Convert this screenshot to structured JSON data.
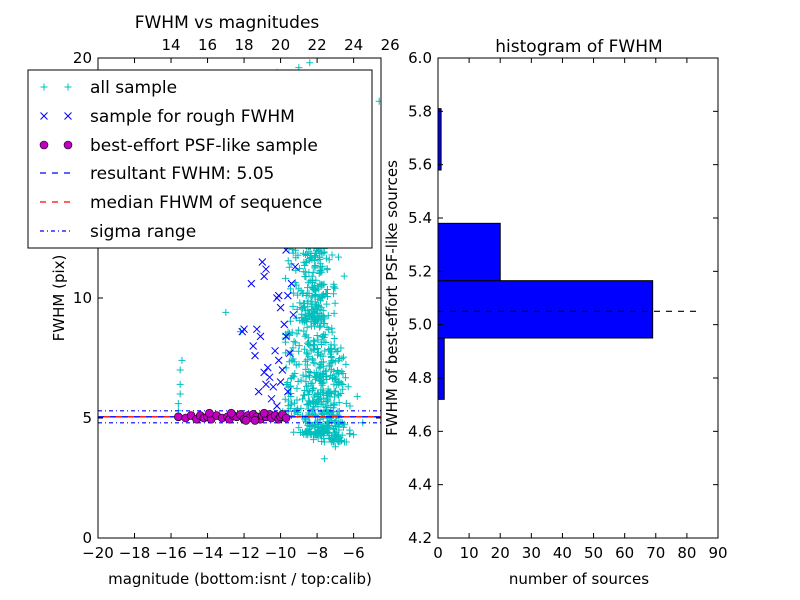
{
  "chart_data": [
    {
      "type": "scatter",
      "title": "FWHM vs magnitudes",
      "xlabel": "magnitude (bottom:isnt / top:calib)",
      "ylabel": "FWHM (pix)",
      "xlim": [
        -20,
        -4.5
      ],
      "ylim": [
        0,
        20
      ],
      "xticks": [
        -20,
        -18,
        -16,
        -14,
        -12,
        -10,
        -8,
        -6
      ],
      "yticks": [
        0,
        5,
        10,
        20
      ],
      "top_axis_ticks": [
        14,
        16,
        18,
        20,
        22,
        24,
        26
      ],
      "top_axis_offset": 30,
      "legend": {
        "position": "top-left",
        "entries": [
          {
            "label": "all sample",
            "marker": "+",
            "color": "#00bfbf"
          },
          {
            "label": "sample for rough FWHM",
            "marker": "x",
            "color": "#0000ff"
          },
          {
            "label": "best-effort PSF-like sample",
            "marker": "o",
            "color": "#bf00bf"
          },
          {
            "label": "resultant FWHM: 5.05",
            "style": "dashed",
            "color": "#0000ff"
          },
          {
            "label": "median FHWM of sequence",
            "style": "dashed",
            "color": "#ff0000"
          },
          {
            "label": "sigma range",
            "style": "dashdot",
            "color": "#0000ff"
          }
        ]
      },
      "lines": {
        "resultant_fwhm": 5.05,
        "median_fwhm": 5.05,
        "sigma_range": [
          4.8,
          5.3
        ]
      },
      "series": [
        {
          "name": "all sample",
          "color": "#00bfbf",
          "marker": "+",
          "points": [
            [
              -15.6,
              5.3
            ],
            [
              -15.6,
              5.6
            ],
            [
              -15.5,
              6.0
            ],
            [
              -15.5,
              6.4
            ],
            [
              -15.5,
              7.0
            ],
            [
              -15.4,
              7.4
            ],
            [
              -13.0,
              9.4
            ],
            [
              -12.2,
              8.6
            ],
            [
              -11.6,
              12.5
            ],
            [
              -10.8,
              13.2
            ],
            [
              -10.5,
              15.0
            ],
            [
              -11.2,
              19.0
            ],
            [
              -11.5,
              18.3
            ],
            [
              -10.2,
              19.4
            ],
            [
              -9.8,
              18.8
            ],
            [
              -9.0,
              19.6
            ],
            [
              -8.4,
              19.8
            ],
            [
              -7.9,
              18.6
            ],
            [
              -9.3,
              17.5
            ],
            [
              -8.6,
              17.0
            ],
            [
              -8.0,
              16.6
            ],
            [
              -4.6,
              18.2
            ],
            [
              -6.6,
              6.2
            ],
            [
              -6.2,
              5.5
            ],
            [
              -5.8,
              5.9
            ],
            [
              -5.5,
              4.8
            ],
            [
              -7.2,
              4.2
            ],
            [
              -7.6,
              3.3
            ],
            [
              -7.0,
              3.8
            ],
            [
              -6.8,
              4.5
            ],
            [
              -8.2,
              4.1
            ],
            [
              -8.8,
              4.4
            ],
            [
              -9.4,
              5.1
            ],
            [
              -9.8,
              5.0
            ],
            [
              -10.0,
              5.2
            ],
            [
              -9.0,
              4.6
            ],
            [
              -6.4,
              4.0
            ],
            [
              -6.0,
              4.3
            ]
          ],
          "clusters": [
            {
              "x_center": -8.0,
              "x_spread": 1.2,
              "y_min": 4.3,
              "y_max": 13.0,
              "count": 420
            },
            {
              "x_center": -8.3,
              "x_spread": 0.6,
              "y_min": 9.0,
              "y_max": 17.0,
              "count": 150
            },
            {
              "x_center": -7.1,
              "x_spread": 0.8,
              "y_min": 4.0,
              "y_max": 8.0,
              "count": 150
            },
            {
              "x_center": -9.4,
              "x_spread": 0.45,
              "y_min": 5.2,
              "y_max": 13.0,
              "count": 70
            }
          ]
        },
        {
          "name": "sample for rough FWHM",
          "color": "#0000ff",
          "marker": "x",
          "points": [
            [
              -12.1,
              8.6
            ],
            [
              -12.0,
              8.7
            ],
            [
              -11.2,
              15.8
            ],
            [
              -11.0,
              11.5
            ],
            [
              -11.4,
              12.4
            ],
            [
              -10.9,
              10.9
            ],
            [
              -10.8,
              11.2
            ],
            [
              -11.6,
              10.6
            ],
            [
              -11.3,
              8.7
            ],
            [
              -11.1,
              8.4
            ],
            [
              -11.5,
              8.0
            ],
            [
              -11.4,
              7.6
            ],
            [
              -10.9,
              6.9
            ],
            [
              -10.6,
              6.7
            ],
            [
              -10.8,
              6.4
            ],
            [
              -10.2,
              10.0
            ],
            [
              -10.1,
              10.1
            ],
            [
              -10.0,
              9.6
            ],
            [
              -9.8,
              8.9
            ],
            [
              -9.7,
              8.4
            ],
            [
              -10.3,
              7.8
            ],
            [
              -10.1,
              7.4
            ],
            [
              -9.9,
              7.0
            ],
            [
              -10.4,
              6.3
            ],
            [
              -9.6,
              6.1
            ],
            [
              -10.0,
              6.5
            ],
            [
              -9.5,
              7.7
            ],
            [
              -9.4,
              10.6
            ],
            [
              -9.8,
              12.4
            ],
            [
              -9.7,
              12.0
            ],
            [
              -9.2,
              11.3
            ],
            [
              -10.5,
              5.8
            ],
            [
              -10.2,
              5.5
            ],
            [
              -10.4,
              13.5
            ],
            [
              -9.9,
              12.8
            ],
            [
              -9.3,
              9.3
            ],
            [
              -10.0,
              12.3
            ],
            [
              -10.7,
              7.1
            ],
            [
              -11.2,
              6.1
            ],
            [
              -9.6,
              10.1
            ]
          ]
        },
        {
          "name": "best-effort PSF-like sample",
          "color": "#bf00bf",
          "marker": "o",
          "points": [
            [
              -15.6,
              5.05
            ],
            [
              -15.2,
              5.0
            ],
            [
              -14.9,
              5.1
            ],
            [
              -14.6,
              4.95
            ],
            [
              -14.4,
              5.1
            ],
            [
              -14.2,
              5.0
            ],
            [
              -14.0,
              5.05
            ],
            [
              -13.8,
              4.95
            ],
            [
              -13.5,
              5.1
            ],
            [
              -13.2,
              5.0
            ],
            [
              -12.9,
              5.05
            ],
            [
              -12.8,
              4.95
            ],
            [
              -12.6,
              5.1
            ],
            [
              -12.4,
              5.05
            ],
            [
              -12.2,
              5.15
            ],
            [
              -12.0,
              4.95
            ],
            [
              -11.8,
              5.1
            ],
            [
              -11.7,
              5.0
            ],
            [
              -11.5,
              5.15
            ],
            [
              -11.3,
              5.05
            ],
            [
              -11.1,
              4.95
            ],
            [
              -11.0,
              5.1
            ],
            [
              -10.8,
              5.05
            ],
            [
              -10.6,
              5.15
            ],
            [
              -10.5,
              5.0
            ],
            [
              -10.3,
              5.1
            ],
            [
              -10.1,
              4.95
            ],
            [
              -10.0,
              5.05
            ],
            [
              -9.9,
              5.15
            ],
            [
              -9.7,
              5.0
            ],
            [
              -13.9,
              5.2
            ],
            [
              -12.7,
              5.2
            ],
            [
              -11.9,
              4.9
            ],
            [
              -11.4,
              4.9
            ],
            [
              -10.9,
              5.2
            ]
          ]
        }
      ]
    },
    {
      "type": "bar",
      "orientation": "horizontal",
      "title": "histogram of FWHM",
      "xlabel": "number of sources",
      "ylabel": "FWHM of best-effort PSF-like sources",
      "xlim": [
        0,
        90
      ],
      "ylim": [
        4.2,
        6.0
      ],
      "xticks": [
        0,
        10,
        20,
        30,
        40,
        50,
        60,
        70,
        80,
        90
      ],
      "yticks": [
        4.2,
        4.4,
        4.6,
        4.8,
        5.0,
        5.2,
        5.4,
        5.6,
        5.8,
        6.0
      ],
      "color": "#0000ff",
      "bins": [
        {
          "range": [
            4.72,
            4.95
          ],
          "count": 2
        },
        {
          "range": [
            4.95,
            5.165
          ],
          "count": 69
        },
        {
          "range": [
            5.165,
            5.38
          ],
          "count": 20
        },
        {
          "range": [
            5.58,
            5.81
          ],
          "count": 1
        }
      ],
      "reference_line": {
        "y": 5.05,
        "style": "dashed",
        "color": "#000000",
        "x_range": [
          0,
          83
        ]
      }
    }
  ]
}
